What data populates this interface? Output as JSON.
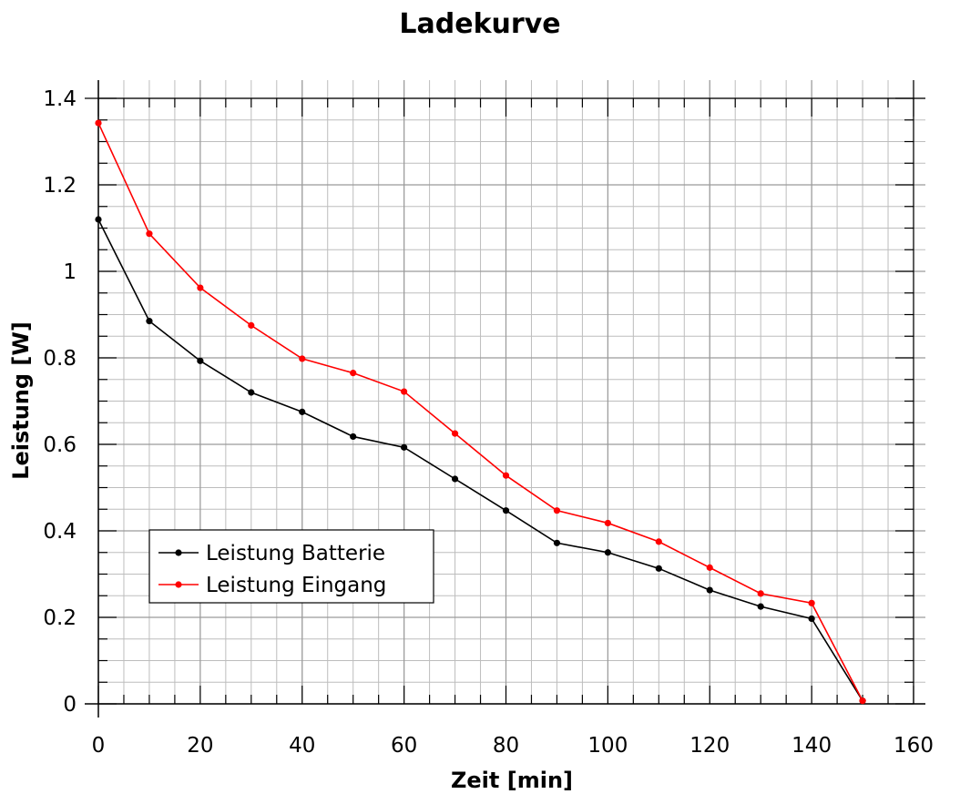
{
  "chart_data": {
    "type": "line",
    "title": "Ladekurve",
    "xlabel": "Zeit [min]",
    "ylabel": "Leistung [W]",
    "xlim": [
      0,
      160
    ],
    "ylim": [
      0,
      1.4
    ],
    "x_ticks": [
      0,
      20,
      40,
      60,
      80,
      100,
      120,
      140,
      160
    ],
    "x_tick_labels": [
      "0",
      "20",
      "40",
      "60",
      "80",
      "100",
      "120",
      "140",
      "160"
    ],
    "y_ticks": [
      0,
      0.2,
      0.4,
      0.6,
      0.8,
      1.0,
      1.2,
      1.4
    ],
    "y_tick_labels": [
      "0",
      "0.2",
      "0.4",
      "0.6",
      "0.8",
      "1",
      "1.2",
      "1.4"
    ],
    "grid": true,
    "legend_position": "bottom-left",
    "x": [
      0,
      10,
      20,
      30,
      40,
      50,
      60,
      70,
      80,
      90,
      100,
      110,
      120,
      130,
      140,
      150
    ],
    "series": [
      {
        "name": "Leistung Batterie",
        "color": "#000000",
        "values": [
          1.12,
          0.885,
          0.793,
          0.72,
          0.675,
          0.618,
          0.593,
          0.52,
          0.447,
          0.372,
          0.35,
          0.313,
          0.263,
          0.225,
          0.197,
          0.007
        ]
      },
      {
        "name": "Leistung Eingang",
        "color": "#ff0000",
        "values": [
          1.343,
          1.087,
          0.962,
          0.875,
          0.798,
          0.765,
          0.722,
          0.625,
          0.528,
          0.447,
          0.418,
          0.375,
          0.315,
          0.255,
          0.233,
          0.007
        ]
      }
    ]
  }
}
